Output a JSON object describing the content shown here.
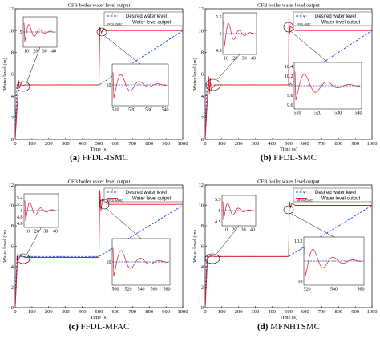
{
  "chart_data": [
    {
      "id": "a",
      "type": "line",
      "caption_label": "(a)",
      "caption_text": "FFDL-ISMC",
      "title": "CFB boiler water level output",
      "xlabel": "Time  (s)",
      "ylabel": "Water level  (m)",
      "xlim": [
        0,
        1000
      ],
      "ylim": [
        0,
        12
      ],
      "xticks": [
        "0",
        "100",
        "200",
        "300",
        "400",
        "500",
        "600",
        "700",
        "800",
        "900",
        "1000"
      ],
      "yticks": [
        "0",
        "2",
        "4",
        "6",
        "8",
        "10",
        "12"
      ],
      "series": [
        {
          "name": "Desired water level",
          "color": "#1f4fd6",
          "style": "dashed",
          "x": [
            0,
            10,
            500,
            1000
          ],
          "y": [
            0,
            5,
            5,
            10
          ]
        },
        {
          "name": "Water level output",
          "color": "#e8141e",
          "style": "solid",
          "x": [
            0,
            20,
            25,
            35,
            45,
            60,
            500,
            505,
            515,
            525,
            540,
            1000
          ],
          "y": [
            0,
            5.4,
            4.7,
            5.2,
            4.95,
            5,
            5,
            10.3,
            9.8,
            10.15,
            10,
            10
          ]
        }
      ],
      "legend": {
        "label1": "Desired water level",
        "label2": "Water level output",
        "sub1": "r",
        "sub2": "FFDL-ISMC",
        "placement": "top-right"
      },
      "insets": [
        {
          "xticks": [
            "10",
            "20",
            "30",
            "40"
          ],
          "yticks": [
            "5"
          ]
        },
        {
          "xticks": [
            "510",
            "520",
            "530",
            "540"
          ],
          "yticks": [
            "10"
          ]
        }
      ]
    },
    {
      "id": "b",
      "type": "line",
      "caption_label": "(b)",
      "caption_text": "FFDL-SMC",
      "title": "CFB boiler water level output",
      "xlabel": "Time  (s)",
      "ylabel": "Water level  (m)",
      "xlim": [
        0,
        1000
      ],
      "ylim": [
        0,
        12
      ],
      "xticks": [
        "0",
        "100",
        "200",
        "300",
        "400",
        "500",
        "600",
        "700",
        "800",
        "900",
        "1000"
      ],
      "yticks": [
        "0",
        "2",
        "4",
        "6",
        "8",
        "10",
        "12"
      ],
      "series": [
        {
          "name": "Desired water level",
          "color": "#1f4fd6",
          "style": "dashed",
          "x": [
            0,
            10,
            500,
            1000
          ],
          "y": [
            0,
            5,
            5,
            10
          ]
        },
        {
          "name": "Water level output",
          "color": "#e8141e",
          "style": "solid",
          "x": [
            0,
            20,
            25,
            30,
            35,
            60,
            500,
            502,
            505,
            510,
            540,
            1000
          ],
          "y": [
            0,
            5.8,
            4.2,
            5.6,
            4.6,
            5,
            5,
            11.9,
            9.6,
            10.4,
            10,
            10
          ]
        }
      ],
      "legend": {
        "label1": "Desired water level",
        "label2": "Water level output",
        "sub1": "r",
        "sub2": "FFDL-SMC",
        "placement": "top-right"
      },
      "insets": [
        {
          "xticks": [
            "10",
            "20",
            "30",
            "40"
          ],
          "yticks": [
            "5.5",
            "5",
            "4.5"
          ]
        },
        {
          "xticks": [
            "510",
            "520",
            "530",
            "540"
          ],
          "yticks": [
            "10.4",
            "10.2",
            "10",
            "9.8",
            "9.6"
          ]
        }
      ]
    },
    {
      "id": "c",
      "type": "line",
      "caption_label": "(c)",
      "caption_text": "FFDL-MFAC",
      "title": "CFB boiler water level output",
      "xlabel": "Time  (s)",
      "ylabel": "Water level  (m)",
      "xlim": [
        0,
        1000
      ],
      "ylim": [
        0,
        12
      ],
      "xticks": [
        "0",
        "100",
        "200",
        "300",
        "400",
        "500",
        "600",
        "700",
        "800",
        "900",
        "1000"
      ],
      "yticks": [
        "0",
        "2",
        "4",
        "6",
        "8",
        "10",
        "12"
      ],
      "series": [
        {
          "name": "Desired water level",
          "color": "#1f4fd6",
          "style": "dashed",
          "x": [
            0,
            10,
            500,
            1000
          ],
          "y": [
            0,
            5,
            5,
            10
          ]
        },
        {
          "name": "Water level output",
          "color": "#e8141e",
          "style": "solid",
          "x": [
            0,
            15,
            20,
            30,
            60,
            500,
            505,
            512,
            520,
            560,
            1000
          ],
          "y": [
            0,
            5.3,
            4.7,
            5.1,
            4.9,
            4.9,
            11.5,
            9.5,
            10.6,
            10.1,
            10.1
          ]
        }
      ],
      "legend": {
        "label1": "Desired water level",
        "label2": "Water level output",
        "sub1": "r",
        "sub2": "FFDL-MFAC",
        "placement": "top-right"
      },
      "insets": [
        {
          "xticks": [
            "10",
            "20",
            "30",
            "40"
          ],
          "yticks": [
            "5.4",
            "5.2",
            "5",
            "4.8",
            "4.6"
          ]
        },
        {
          "xticks": [
            "500",
            "520",
            "540",
            "560",
            "580"
          ],
          "yticks": [
            "10"
          ]
        }
      ]
    },
    {
      "id": "d",
      "type": "line",
      "caption_label": "(d)",
      "caption_text": "MFNHTSMC",
      "title": "CFB boiler water level output",
      "xlabel": "Time  (s)",
      "ylabel": "Water level  (m)",
      "xlim": [
        0,
        1000
      ],
      "ylim": [
        0,
        12
      ],
      "xticks": [
        "0",
        "100",
        "200",
        "300",
        "400",
        "500",
        "600",
        "700",
        "800",
        "900",
        "1000"
      ],
      "yticks": [
        "0",
        "2",
        "4",
        "6",
        "8",
        "10",
        "12"
      ],
      "series": [
        {
          "name": "Desired water level",
          "color": "#1f4fd6",
          "style": "dashed",
          "x": [
            0,
            10,
            500,
            1000
          ],
          "y": [
            0,
            5,
            5,
            10
          ]
        },
        {
          "name": "Water level output",
          "color": "#e8141e",
          "style": "solid",
          "x": [
            0,
            15,
            20,
            30,
            60,
            500,
            505,
            512,
            520,
            540,
            1000
          ],
          "y": [
            0,
            5.2,
            4.9,
            5.05,
            5,
            5,
            10.4,
            9.8,
            10.2,
            10,
            10
          ]
        }
      ],
      "legend": {
        "label1": "Desired water level",
        "label2": "Water level output",
        "sub1": "r",
        "sub2": "MFNHTSMC",
        "placement": "top-right"
      },
      "insets": [
        {
          "xticks": [
            "10",
            "20",
            "30",
            "40"
          ],
          "yticks": [
            "5.5",
            "5",
            "4.5"
          ]
        },
        {
          "xticks": [
            "520",
            "540",
            "560"
          ],
          "yticks": [
            "10.2",
            "10"
          ]
        }
      ]
    }
  ]
}
